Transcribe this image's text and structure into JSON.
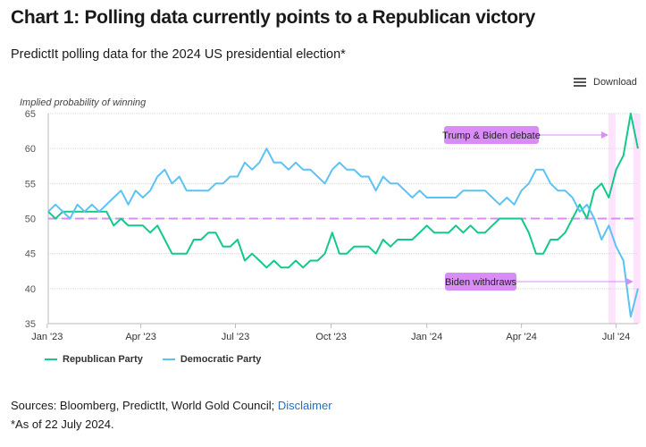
{
  "header": {
    "title": "Chart 1: Polling data currently points to a Republican victory",
    "subtitle": "PredictIt polling data for the 2024 US presidential election*",
    "download_label": "Download",
    "download_icon": "hamburger-menu-icon"
  },
  "chart_data": {
    "type": "line",
    "ylabel": "Implied probability of winning",
    "ylim": [
      35,
      65
    ],
    "yticks": [
      "35",
      "40",
      "45",
      "50",
      "55",
      "60",
      "65"
    ],
    "xticks": [
      {
        "label": "Jan '23",
        "date": "2023-01-01"
      },
      {
        "label": "Apr '23",
        "date": "2023-04-01"
      },
      {
        "label": "Jul '23",
        "date": "2023-07-01"
      },
      {
        "label": "Oct '23",
        "date": "2023-10-01"
      },
      {
        "label": "Jan '24",
        "date": "2024-01-01"
      },
      {
        "label": "Apr '24",
        "date": "2024-04-01"
      },
      {
        "label": "Jul '24",
        "date": "2024-07-01"
      }
    ],
    "grid": true,
    "reference_line": {
      "value": 50,
      "color": "#d98cf5",
      "style": "dashed"
    },
    "x": [
      "2023-01-02",
      "2023-01-09",
      "2023-01-16",
      "2023-01-23",
      "2023-01-30",
      "2023-02-06",
      "2023-02-13",
      "2023-02-20",
      "2023-02-27",
      "2023-03-06",
      "2023-03-13",
      "2023-03-20",
      "2023-03-27",
      "2023-04-03",
      "2023-04-10",
      "2023-04-17",
      "2023-04-24",
      "2023-05-01",
      "2023-05-08",
      "2023-05-15",
      "2023-05-22",
      "2023-05-29",
      "2023-06-05",
      "2023-06-12",
      "2023-06-19",
      "2023-06-26",
      "2023-07-03",
      "2023-07-10",
      "2023-07-17",
      "2023-07-24",
      "2023-07-31",
      "2023-08-07",
      "2023-08-14",
      "2023-08-21",
      "2023-08-28",
      "2023-09-04",
      "2023-09-11",
      "2023-09-18",
      "2023-09-25",
      "2023-10-02",
      "2023-10-09",
      "2023-10-16",
      "2023-10-23",
      "2023-10-30",
      "2023-11-06",
      "2023-11-13",
      "2023-11-20",
      "2023-11-27",
      "2023-12-04",
      "2023-12-11",
      "2023-12-18",
      "2023-12-25",
      "2024-01-01",
      "2024-01-08",
      "2024-01-15",
      "2024-01-22",
      "2024-01-29",
      "2024-02-05",
      "2024-02-12",
      "2024-02-19",
      "2024-02-26",
      "2024-03-04",
      "2024-03-11",
      "2024-03-18",
      "2024-03-25",
      "2024-04-01",
      "2024-04-08",
      "2024-04-15",
      "2024-04-22",
      "2024-04-29",
      "2024-05-06",
      "2024-05-13",
      "2024-05-20",
      "2024-05-27",
      "2024-06-03",
      "2024-06-10",
      "2024-06-17",
      "2024-06-24",
      "2024-07-01",
      "2024-07-08",
      "2024-07-15",
      "2024-07-22"
    ],
    "series": [
      {
        "name": "Republican Party",
        "color": "#12c98a",
        "values": [
          51,
          50,
          51,
          51,
          51,
          51,
          51,
          51,
          51,
          49,
          50,
          49,
          49,
          49,
          48,
          49,
          47,
          45,
          45,
          45,
          47,
          47,
          48,
          48,
          46,
          46,
          47,
          44,
          45,
          44,
          43,
          44,
          43,
          43,
          44,
          43,
          44,
          44,
          45,
          48,
          45,
          45,
          46,
          46,
          46,
          45,
          47,
          46,
          47,
          47,
          47,
          48,
          49,
          48,
          48,
          48,
          49,
          48,
          49,
          48,
          48,
          49,
          50,
          50,
          50,
          50,
          48,
          45,
          45,
          47,
          47,
          48,
          50,
          52,
          50,
          54,
          55,
          53,
          57,
          59,
          65,
          60
        ]
      },
      {
        "name": "Democratic Party",
        "color": "#5bc2f5",
        "values": [
          51,
          52,
          51,
          50,
          52,
          51,
          52,
          51,
          52,
          53,
          54,
          52,
          54,
          53,
          54,
          56,
          57,
          55,
          56,
          54,
          54,
          54,
          54,
          55,
          55,
          56,
          56,
          58,
          57,
          58,
          60,
          58,
          58,
          57,
          58,
          57,
          57,
          56,
          55,
          57,
          58,
          57,
          57,
          56,
          56,
          54,
          56,
          55,
          55,
          54,
          53,
          54,
          53,
          53,
          53,
          53,
          53,
          54,
          54,
          54,
          54,
          53,
          52,
          53,
          52,
          54,
          55,
          57,
          57,
          55,
          54,
          54,
          53,
          51,
          52,
          50,
          47,
          49,
          46,
          44,
          36,
          40
        ]
      }
    ],
    "annotations": [
      {
        "label": "Trump & Biden debate",
        "date": "2024-06-27"
      },
      {
        "label": "Biden withdraws",
        "date": "2024-07-21"
      }
    ],
    "annotation_color": "#d98cf5",
    "band_color": "#fde3fb",
    "legend_position": "bottom-left"
  },
  "footer": {
    "sources_prefix": "Sources: Bloomberg, PredictIt, World Gold Council; ",
    "disclaimer_link": "Disclaimer",
    "note": "*As of 22 July 2024."
  }
}
